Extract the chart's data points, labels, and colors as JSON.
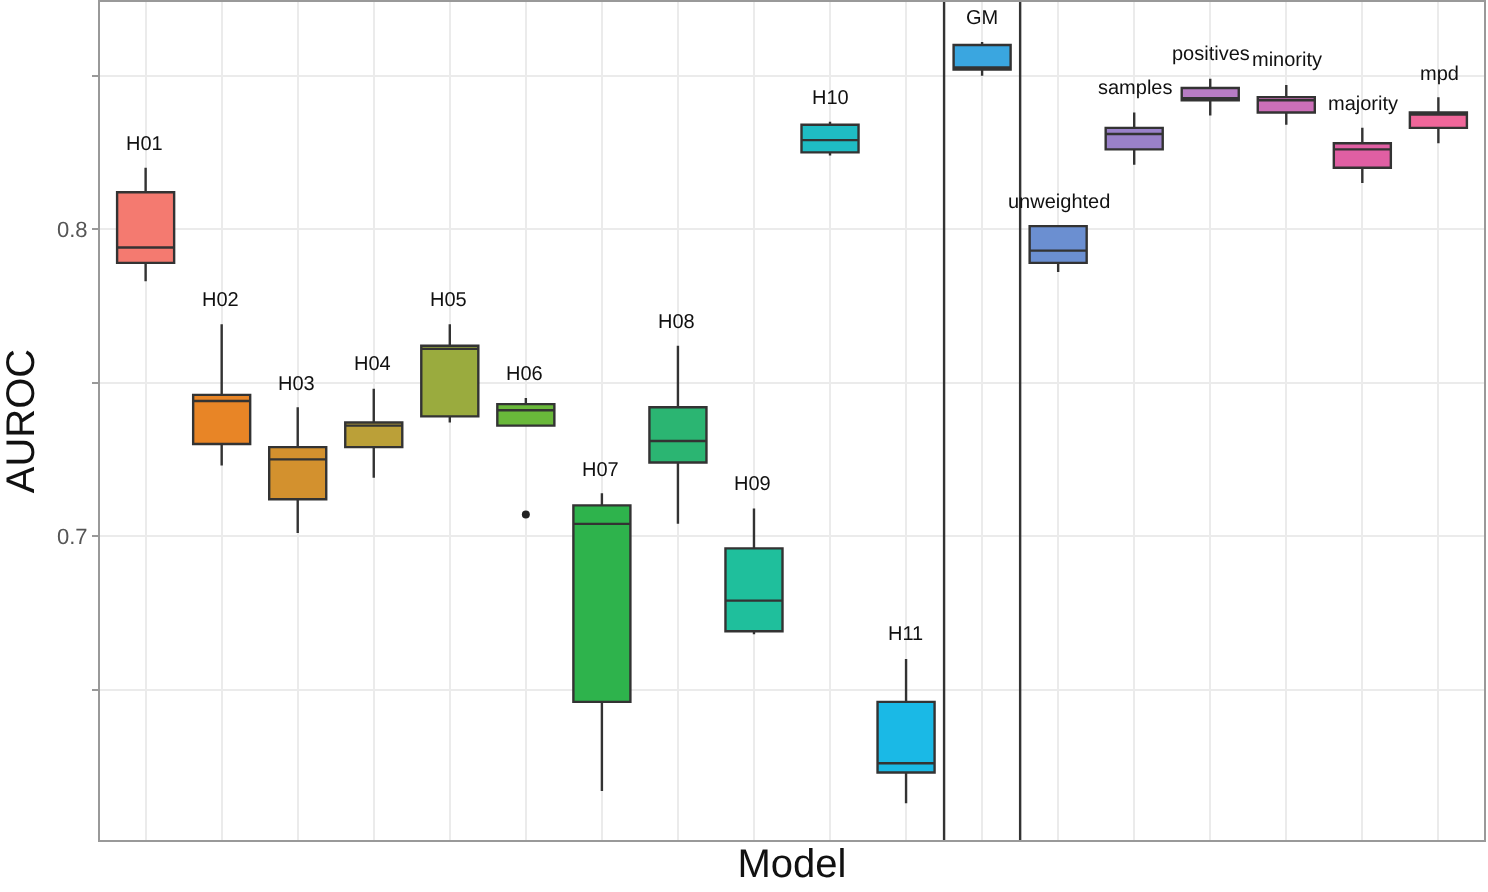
{
  "chart_data": {
    "type": "box",
    "xlabel": "Model",
    "ylabel": "AUROC",
    "categories": [
      "H01",
      "H02",
      "H03",
      "H04",
      "H05",
      "H06",
      "H07",
      "H08",
      "H09",
      "H10",
      "H11",
      "GM",
      "unweighted",
      "samples",
      "positives",
      "minority",
      "majority",
      "mpd"
    ],
    "colors": [
      "#f47a70",
      "#e88526",
      "#d3912e",
      "#bba038",
      "#9aab3e",
      "#69b83a",
      "#2eb34c",
      "#2bb572",
      "#1fbf9c",
      "#1fbcc4",
      "#1ab9e6",
      "#3aa6e0",
      "#6b8fd1",
      "#9a81c9",
      "#b77cc4",
      "#cc6fb8",
      "#e05fa3",
      "#f0679a"
    ],
    "boxes": [
      {
        "low": 0.783,
        "q1": 0.789,
        "median": 0.794,
        "q3": 0.812,
        "high": 0.82
      },
      {
        "low": 0.723,
        "q1": 0.73,
        "median": 0.744,
        "q3": 0.746,
        "high": 0.769
      },
      {
        "low": 0.701,
        "q1": 0.712,
        "median": 0.725,
        "q3": 0.729,
        "high": 0.742
      },
      {
        "low": 0.719,
        "q1": 0.729,
        "median": 0.736,
        "q3": 0.737,
        "high": 0.748
      },
      {
        "low": 0.737,
        "q1": 0.739,
        "median": 0.761,
        "q3": 0.762,
        "high": 0.769
      },
      {
        "low": 0.736,
        "q1": 0.736,
        "median": 0.741,
        "q3": 0.743,
        "high": 0.745,
        "outliers": [
          0.707
        ]
      },
      {
        "low": 0.617,
        "q1": 0.646,
        "median": 0.704,
        "q3": 0.71,
        "high": 0.714
      },
      {
        "low": 0.704,
        "q1": 0.724,
        "median": 0.731,
        "q3": 0.742,
        "high": 0.762
      },
      {
        "low": 0.668,
        "q1": 0.669,
        "median": 0.679,
        "q3": 0.696,
        "high": 0.709
      },
      {
        "low": 0.824,
        "q1": 0.825,
        "median": 0.829,
        "q3": 0.834,
        "high": 0.835
      },
      {
        "low": 0.613,
        "q1": 0.623,
        "median": 0.626,
        "q3": 0.646,
        "high": 0.66
      },
      {
        "low": 0.85,
        "q1": 0.852,
        "median": 0.852,
        "q3": 0.86,
        "high": 0.861
      },
      {
        "low": 0.786,
        "q1": 0.789,
        "median": 0.793,
        "q3": 0.801,
        "high": 0.801
      },
      {
        "low": 0.821,
        "q1": 0.826,
        "median": 0.831,
        "q3": 0.833,
        "high": 0.838
      },
      {
        "low": 0.837,
        "q1": 0.842,
        "median": 0.842,
        "q3": 0.846,
        "high": 0.849
      },
      {
        "low": 0.834,
        "q1": 0.838,
        "median": 0.842,
        "q3": 0.843,
        "high": 0.847
      },
      {
        "low": 0.815,
        "q1": 0.82,
        "median": 0.826,
        "q3": 0.828,
        "high": 0.833
      },
      {
        "low": 0.828,
        "q1": 0.833,
        "median": 0.838,
        "q3": 0.838,
        "high": 0.843
      }
    ],
    "ylim": [
      0.601,
      0.874
    ],
    "yticks": [
      {
        "value": 0.65,
        "label": null
      },
      0.7,
      {
        "value": 0.75,
        "label": null
      },
      0.8,
      {
        "value": 0.85,
        "label": null
      }
    ],
    "tick_labels": "y",
    "grid": true
  }
}
